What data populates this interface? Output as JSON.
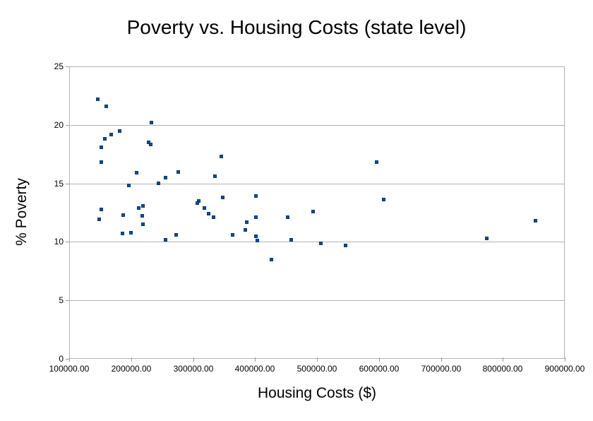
{
  "chart_data": {
    "type": "scatter",
    "title": "Poverty vs. Housing Costs (state level)",
    "xlabel": "Housing Costs ($)",
    "ylabel": "% Poverty",
    "xlim": [
      100000,
      900000
    ],
    "ylim": [
      0,
      25
    ],
    "xticks": [
      100000,
      200000,
      300000,
      400000,
      500000,
      600000,
      700000,
      800000,
      900000
    ],
    "xtick_labels": [
      "100000.00",
      "200000.00",
      "300000.00",
      "400000.00",
      "500000.00",
      "600000.00",
      "700000.00",
      "800000.00",
      "900000.00"
    ],
    "yticks": [
      0,
      5,
      10,
      15,
      20,
      25
    ],
    "ytick_labels": [
      "0",
      "5",
      "10",
      "15",
      "20",
      "25"
    ],
    "grid": "horizontal",
    "legend": "none",
    "marker_shape": "square",
    "marker_color": "#0d4e98",
    "marker_border_color": "#093969",
    "points": [
      [
        146000,
        22.2
      ],
      [
        160000,
        21.6
      ],
      [
        152000,
        18.1
      ],
      [
        158000,
        18.8
      ],
      [
        168000,
        19.2
      ],
      [
        181000,
        19.5
      ],
      [
        233000,
        20.2
      ],
      [
        228000,
        18.5
      ],
      [
        232000,
        18.3
      ],
      [
        152000,
        16.8
      ],
      [
        209000,
        15.9
      ],
      [
        276000,
        16.0
      ],
      [
        255000,
        15.5
      ],
      [
        244000,
        15.0
      ],
      [
        196000,
        14.8
      ],
      [
        152000,
        12.8
      ],
      [
        148000,
        11.9
      ],
      [
        187000,
        12.3
      ],
      [
        212000,
        12.9
      ],
      [
        219000,
        13.1
      ],
      [
        218000,
        12.2
      ],
      [
        219000,
        11.5
      ],
      [
        186000,
        10.7
      ],
      [
        200000,
        10.8
      ],
      [
        255000,
        10.2
      ],
      [
        273000,
        10.6
      ],
      [
        309000,
        13.5
      ],
      [
        307000,
        13.3
      ],
      [
        318000,
        12.9
      ],
      [
        325000,
        12.4
      ],
      [
        333000,
        12.1
      ],
      [
        346000,
        17.3
      ],
      [
        335000,
        15.6
      ],
      [
        348000,
        13.8
      ],
      [
        401000,
        13.9
      ],
      [
        401000,
        12.1
      ],
      [
        387000,
        11.7
      ],
      [
        384000,
        11.0
      ],
      [
        364000,
        10.6
      ],
      [
        401000,
        10.5
      ],
      [
        404000,
        10.1
      ],
      [
        427000,
        8.5
      ],
      [
        453000,
        12.1
      ],
      [
        458000,
        10.2
      ],
      [
        494000,
        12.6
      ],
      [
        506000,
        9.9
      ],
      [
        546000,
        9.7
      ],
      [
        596000,
        16.8
      ],
      [
        608000,
        13.6
      ],
      [
        774000,
        10.3
      ],
      [
        853000,
        11.8
      ]
    ]
  },
  "colors": {
    "background": "#ffffff",
    "plot_border": "#b3b3b3",
    "gridline": "#b3b3b3",
    "axis_tick": "#999999",
    "text": "#000000"
  }
}
